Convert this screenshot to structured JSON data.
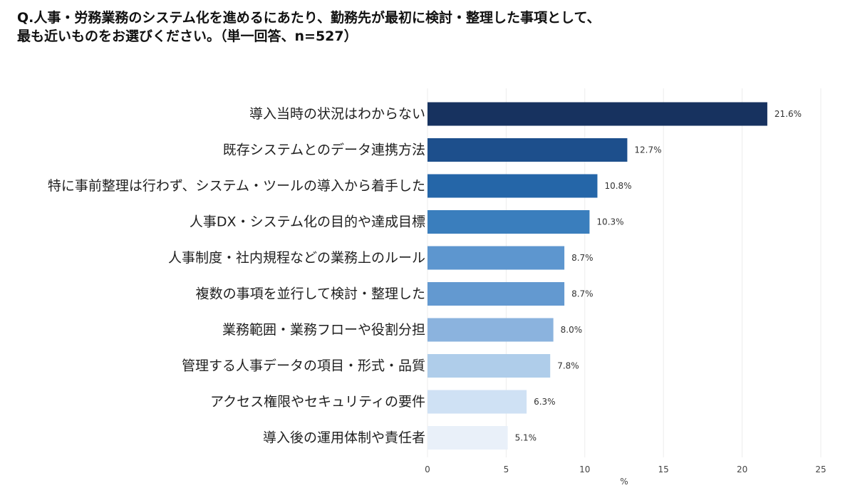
{
  "question": {
    "line1": "Q.人事・労務業務のシステム化を進めるにあたり、勤務先が最初に検討・整理した事項として、",
    "line2": "最も近いものをお選びください。（単一回答、n=527）"
  },
  "chart_data": {
    "type": "bar",
    "orientation": "horizontal",
    "categories": [
      "導入当時の状況はわからない",
      "既存システムとのデータ連携方法",
      "特に事前整理は行わず、システム・ツールの導入から着手した",
      "人事DX・システム化の目的や達成目標",
      "人事制度・社内規程などの業務上のルール",
      "複数の事項を並行して検討・整理した",
      "業務範囲・業務フローや役割分担",
      "管理する人事データの項目・形式・品質",
      "アクセス権限やセキュリティの要件",
      "導入後の運用体制や責任者"
    ],
    "values": [
      21.6,
      12.7,
      10.8,
      10.3,
      8.7,
      8.7,
      8.0,
      7.8,
      6.3,
      5.1
    ],
    "value_labels": [
      "21.6%",
      "12.7%",
      "10.8%",
      "10.3%",
      "8.7%",
      "8.7%",
      "8.0%",
      "7.8%",
      "6.3%",
      "5.1%"
    ],
    "bar_colors": [
      "#17325f",
      "#1d4f8c",
      "#2566a8",
      "#3a7ebd",
      "#5d96cf",
      "#6399d0",
      "#8bb3de",
      "#afcdea",
      "#cfe1f4",
      "#e9f0f9"
    ],
    "xlabel": "%",
    "xticks": [
      0,
      5,
      10,
      15,
      20,
      25
    ],
    "xlim": [
      0,
      25
    ],
    "grid": true
  }
}
